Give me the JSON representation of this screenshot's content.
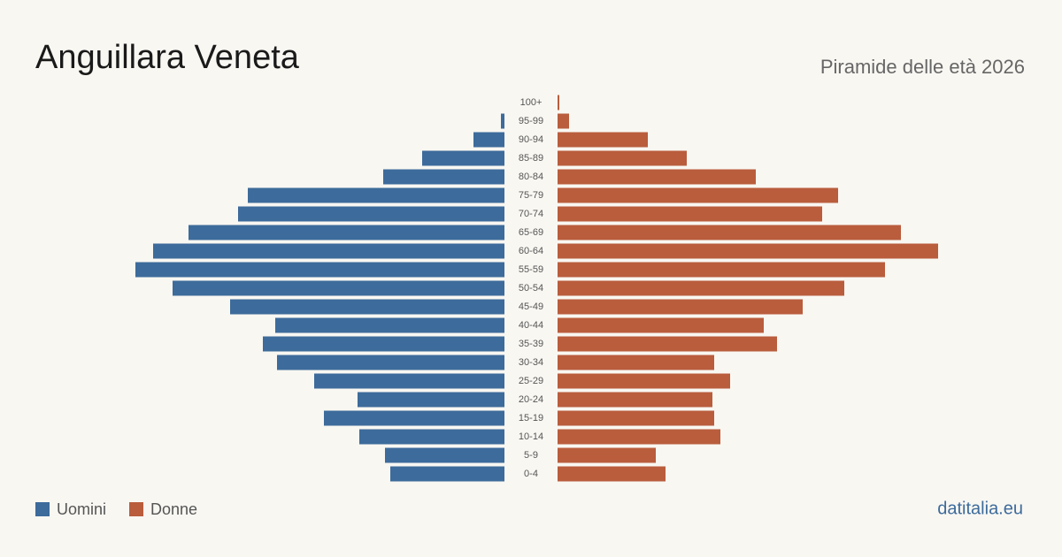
{
  "chart_data": {
    "type": "pyramid",
    "title": "Anguillara Veneta",
    "subtitle": "Piramide delle età 2026",
    "source": "datitalia.eu",
    "categories": [
      "100+",
      "95-99",
      "90-94",
      "85-89",
      "80-84",
      "75-79",
      "70-74",
      "65-69",
      "60-64",
      "55-59",
      "50-54",
      "45-49",
      "40-44",
      "35-39",
      "30-34",
      "25-29",
      "20-24",
      "15-19",
      "10-14",
      "5-9",
      "0-4"
    ],
    "series": [
      {
        "name": "Uomini",
        "color": "#3d6b9b",
        "values": [
          0,
          4,
          35,
          93,
          137,
          290,
          301,
          357,
          397,
          417,
          375,
          310,
          259,
          273,
          257,
          215,
          166,
          204,
          164,
          135,
          129
        ]
      },
      {
        "name": "Donne",
        "color": "#b95d3d",
        "values": [
          2,
          13,
          102,
          146,
          224,
          317,
          299,
          388,
          430,
          370,
          324,
          277,
          233,
          248,
          177,
          195,
          175,
          177,
          184,
          111,
          122
        ]
      }
    ]
  }
}
